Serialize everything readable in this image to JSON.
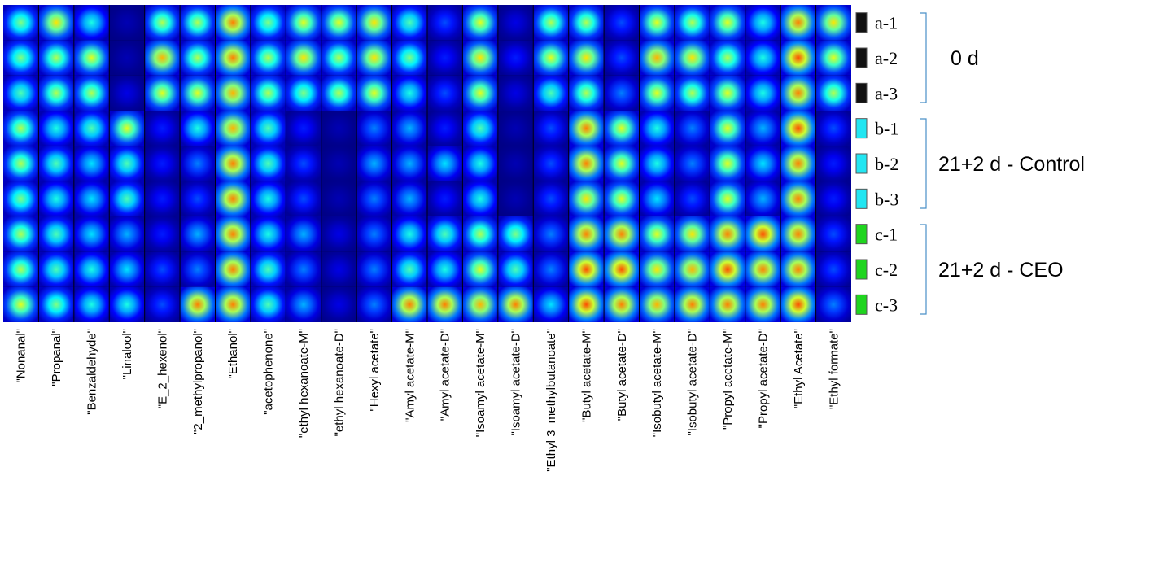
{
  "chart_data": {
    "type": "heatmap",
    "title": "",
    "columns": [
      "\"Nonanal\"",
      "\"Propanal\"",
      "\"Benzaldehyde\"",
      "\"Linalool\"",
      "\"E_2_hexenol\"",
      "\"2_methylpropanol\"",
      "\"Ethanol\"",
      "\"acetophenone\"",
      "\"ethyl hexanoate-M\"",
      "\"ethyl hexanoate-D\"",
      "\"Hexyl acetate\"",
      "\"Amyl acetate-M\"",
      "\"Amyl acetate-D\"",
      "\"Isoamyl acetate-M\"",
      "\"Isoamyl acetate-D\"",
      "\"Ethyl 3_methylbutanoate\"",
      "\"Butyl acetate-M\"",
      "\"Butyl acetate-D\"",
      "\"Isobutyl acetate-M\"",
      "\"Isobutyl acetate-D\"",
      "\"Propyl acetate-M\"",
      "\"Propyl acetate-D\"",
      "\"Ethyl Acetate\"",
      "\"Ethyl formate\""
    ],
    "rows": [
      "a-1",
      "a-2",
      "a-3",
      "b-1",
      "b-2",
      "b-3",
      "c-1",
      "c-2",
      "c-3"
    ],
    "groups": [
      {
        "label": "0 d",
        "rows": [
          "a-1",
          "a-2",
          "a-3"
        ],
        "swatch_color": "#111111"
      },
      {
        "label": "21+2 d - Control",
        "rows": [
          "b-1",
          "b-2",
          "b-3"
        ],
        "swatch_color": "#22e6f2"
      },
      {
        "label": "21+2 d - CEO",
        "rows": [
          "c-1",
          "c-2",
          "c-3"
        ],
        "swatch_color": "#1fd51f"
      }
    ],
    "colormap": "jet",
    "value_range": [
      0,
      1
    ],
    "intensity": [
      [
        0.5,
        0.65,
        0.4,
        0.05,
        0.55,
        0.55,
        0.75,
        0.5,
        0.6,
        0.6,
        0.65,
        0.45,
        0.2,
        0.6,
        0.1,
        0.55,
        0.55,
        0.2,
        0.6,
        0.55,
        0.6,
        0.4,
        0.75,
        0.65
      ],
      [
        0.5,
        0.55,
        0.6,
        0.05,
        0.7,
        0.55,
        0.75,
        0.55,
        0.65,
        0.55,
        0.65,
        0.5,
        0.15,
        0.65,
        0.15,
        0.6,
        0.65,
        0.2,
        0.7,
        0.65,
        0.55,
        0.4,
        0.8,
        0.6
      ],
      [
        0.45,
        0.55,
        0.55,
        0.1,
        0.6,
        0.6,
        0.7,
        0.55,
        0.5,
        0.55,
        0.6,
        0.4,
        0.2,
        0.6,
        0.1,
        0.45,
        0.55,
        0.25,
        0.6,
        0.55,
        0.6,
        0.4,
        0.75,
        0.55
      ],
      [
        0.55,
        0.4,
        0.45,
        0.6,
        0.15,
        0.4,
        0.7,
        0.45,
        0.15,
        0.05,
        0.25,
        0.3,
        0.15,
        0.45,
        0.05,
        0.2,
        0.75,
        0.6,
        0.4,
        0.25,
        0.6,
        0.3,
        0.8,
        0.2
      ],
      [
        0.55,
        0.45,
        0.35,
        0.45,
        0.15,
        0.25,
        0.75,
        0.45,
        0.2,
        0.05,
        0.3,
        0.3,
        0.35,
        0.4,
        0.05,
        0.2,
        0.75,
        0.6,
        0.4,
        0.25,
        0.6,
        0.35,
        0.75,
        0.15
      ],
      [
        0.5,
        0.4,
        0.35,
        0.45,
        0.15,
        0.2,
        0.75,
        0.4,
        0.2,
        0.05,
        0.25,
        0.3,
        0.15,
        0.4,
        0.05,
        0.2,
        0.65,
        0.6,
        0.35,
        0.2,
        0.6,
        0.3,
        0.75,
        0.15
      ],
      [
        0.55,
        0.45,
        0.35,
        0.3,
        0.15,
        0.3,
        0.75,
        0.4,
        0.3,
        0.1,
        0.25,
        0.4,
        0.45,
        0.55,
        0.5,
        0.25,
        0.75,
        0.75,
        0.6,
        0.65,
        0.75,
        0.8,
        0.75,
        0.2
      ],
      [
        0.55,
        0.45,
        0.4,
        0.35,
        0.2,
        0.25,
        0.75,
        0.45,
        0.25,
        0.1,
        0.25,
        0.45,
        0.4,
        0.6,
        0.45,
        0.25,
        0.8,
        0.8,
        0.65,
        0.7,
        0.8,
        0.75,
        0.75,
        0.2
      ],
      [
        0.6,
        0.5,
        0.4,
        0.4,
        0.2,
        0.75,
        0.75,
        0.45,
        0.3,
        0.1,
        0.25,
        0.75,
        0.75,
        0.7,
        0.75,
        0.35,
        0.8,
        0.75,
        0.7,
        0.75,
        0.75,
        0.75,
        0.8,
        0.25
      ]
    ]
  }
}
